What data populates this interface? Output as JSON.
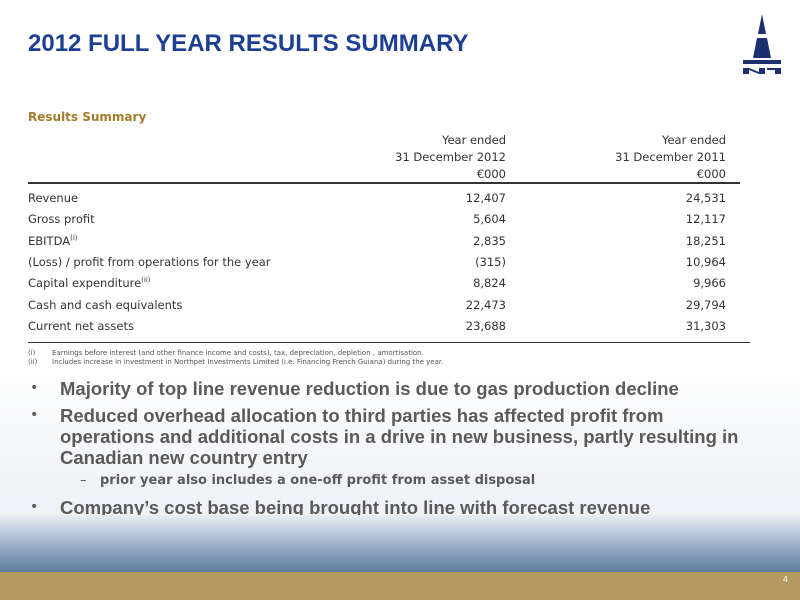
{
  "header": {
    "title": "2012 FULL YEAR RESULTS SUMMARY"
  },
  "table": {
    "caption": "Results Summary",
    "columns": [
      [
        "Year ended",
        "31 December 2012",
        "€000"
      ],
      [
        "Year ended",
        "31 December 2011",
        "€000"
      ]
    ],
    "rows": [
      {
        "label": "Revenue",
        "values": [
          "12,407",
          "24,531"
        ]
      },
      {
        "label": "Gross profit",
        "values": [
          "5,604",
          "12,117"
        ]
      },
      {
        "label": "EBITDA",
        "note": "(i)",
        "values": [
          "2,835",
          "18,251"
        ]
      },
      {
        "label": "(Loss) / profit from operations for the year",
        "values": [
          "(315)",
          "10,964"
        ]
      },
      {
        "label": "Capital expenditure",
        "note": "(ii)",
        "values": [
          "8,824",
          "9,966"
        ]
      },
      {
        "label": "Cash and cash equivalents",
        "values": [
          "22,473",
          "29,794"
        ]
      },
      {
        "label": "Current net assets",
        "values": [
          "23,688",
          "31,303"
        ]
      }
    ],
    "footnotes": [
      {
        "marker": "(i)",
        "text": "Earnings before interest (and other finance income and costs), tax, depreciation, depletion , amortisation."
      },
      {
        "marker": "(ii)",
        "text": "Includes increase in investment in Northpet Investments Limited (i.e. Financing French Guiana) during the year."
      }
    ]
  },
  "bullets": [
    {
      "level": 1,
      "text": "Majority of top line revenue reduction is due to gas production decline"
    },
    {
      "level": 1,
      "text": "Reduced overhead allocation to third parties has affected profit from operations and additional costs in a drive in new business, partly resulting in Canadian new country entry"
    },
    {
      "level": 2,
      "text": "prior year also includes a one-off profit from asset disposal"
    },
    {
      "level": 1,
      "text": "Company’s cost base being brought into line with forecast revenue"
    }
  ],
  "page_number": "4"
}
